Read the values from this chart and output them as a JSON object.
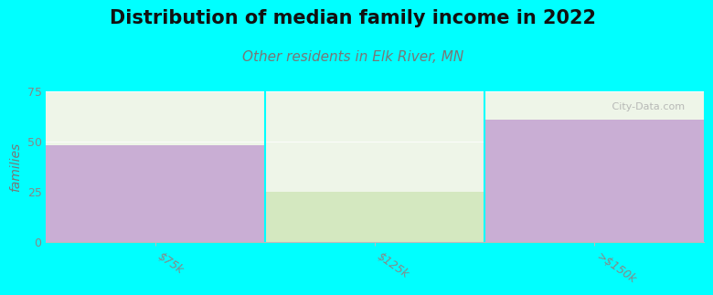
{
  "title": "Distribution of median family income in 2022",
  "subtitle": "Other residents in Elk River, MN",
  "categories": [
    "$75k",
    "$125k",
    ">$150k"
  ],
  "values": [
    48,
    25,
    61
  ],
  "bar_colors": [
    "#c9aed4",
    "#d4e8c0",
    "#c9aed4"
  ],
  "bg_color": "#00ffff",
  "plot_bg_color": "#eef5e8",
  "ylabel": "families",
  "ylim": [
    0,
    75
  ],
  "yticks": [
    0,
    25,
    50,
    75
  ],
  "watermark": " City-Data.com",
  "title_fontsize": 15,
  "subtitle_fontsize": 11,
  "subtitle_color": "#777777",
  "tick_label_color": "#888888",
  "ylabel_color": "#777777"
}
